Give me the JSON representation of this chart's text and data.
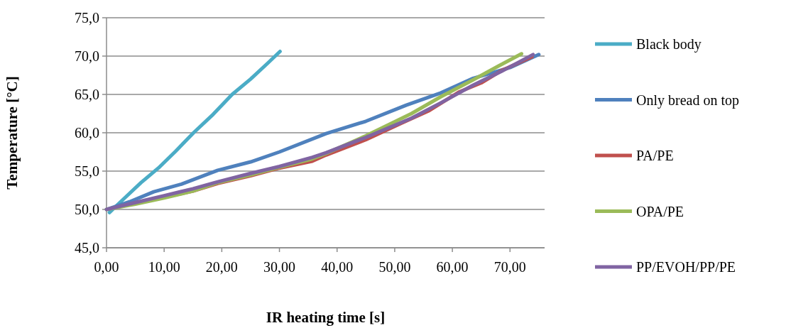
{
  "chart_data": {
    "type": "line",
    "xlabel": "IR heating time [s]",
    "ylabel": "Temperature [°C]",
    "xlim": [
      0,
      76
    ],
    "xticks": [
      {
        "value": 0,
        "label": "0,00"
      },
      {
        "value": 10,
        "label": "10,00"
      },
      {
        "value": 20,
        "label": "20,00"
      },
      {
        "value": 30,
        "label": "30,00"
      },
      {
        "value": 40,
        "label": "40,00"
      },
      {
        "value": 50,
        "label": "50,00"
      },
      {
        "value": 60,
        "label": "60,00"
      },
      {
        "value": 70,
        "label": "70,00"
      }
    ],
    "ylim": [
      45,
      75
    ],
    "yticks": [
      {
        "value": 45,
        "label": "45,0"
      },
      {
        "value": 50,
        "label": "50,0"
      },
      {
        "value": 55,
        "label": "55,0"
      },
      {
        "value": 60,
        "label": "60,0"
      },
      {
        "value": 65,
        "label": "65,0"
      },
      {
        "value": 70,
        "label": "70,0"
      },
      {
        "value": 75,
        "label": "75,0"
      }
    ],
    "grid": "y",
    "legend": "right",
    "marker": "none",
    "line_style": "solid",
    "series": [
      {
        "name": "Black body",
        "color": "#4bacc6",
        "x": [
          0.5,
          3.3,
          6,
          9,
          12,
          15.1,
          18.5,
          21.8,
          25,
          28,
          30.1
        ],
        "values": [
          49.6,
          51.6,
          53.5,
          55.4,
          57.6,
          60.0,
          62.4,
          65.0,
          67.0,
          69.1,
          70.6
        ]
      },
      {
        "name": "Only bread on top",
        "color": "#4f81bd",
        "x": [
          0,
          4,
          8.2,
          13,
          19.3,
          25,
          30,
          38.1,
          45,
          52,
          58,
          63.6,
          70,
          75
        ],
        "values": [
          50,
          51,
          52.3,
          53.3,
          55.1,
          56.2,
          57.5,
          59.9,
          61.5,
          63.6,
          65.2,
          67.1,
          68.5,
          70.2
        ]
      },
      {
        "name": "PA/PE",
        "color": "#c0504d",
        "x": [
          10,
          15,
          19.3,
          25,
          30,
          35.7,
          38.1,
          45,
          51.3,
          56,
          61.1,
          65,
          68.5,
          73.8
        ],
        "values": [
          51.6,
          52.4,
          53.4,
          54.4,
          55.4,
          56.3,
          57.1,
          59.1,
          61.3,
          62.9,
          65.3,
          66.5,
          68.1,
          69.9
        ]
      },
      {
        "name": "OPA/PE",
        "color": "#9bbb59",
        "x": [
          0,
          5,
          10,
          15,
          19.3,
          25,
          30,
          35.7,
          38.1,
          45,
          52.9,
          58,
          63.6,
          68,
          72
        ],
        "values": [
          50,
          50.7,
          51.5,
          52.4,
          53.5,
          54.5,
          55.5,
          56.6,
          57.3,
          59.6,
          62.5,
          64.7,
          66.9,
          68.7,
          70.3
        ]
      },
      {
        "name": "PP/EVOH/PP/PE",
        "color": "#8064a2",
        "x": [
          0,
          5,
          10,
          15,
          19.3,
          25,
          30,
          35.7,
          38.1,
          45,
          52.9,
          58,
          63.6,
          68.5,
          74
        ],
        "values": [
          50,
          50.9,
          51.8,
          52.7,
          53.6,
          54.7,
          55.6,
          56.8,
          57.4,
          59.4,
          61.9,
          63.9,
          66.2,
          68.0,
          70.2
        ]
      }
    ]
  }
}
